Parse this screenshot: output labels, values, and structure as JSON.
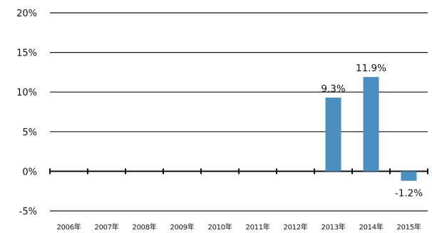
{
  "chart_data": {
    "type": "bar",
    "categories": [
      "2006年",
      "2007年",
      "2008年",
      "2009年",
      "2010年",
      "2011年",
      "2012年",
      "2013年",
      "2014年",
      "2015年"
    ],
    "values": [
      null,
      null,
      null,
      null,
      null,
      null,
      null,
      9.3,
      11.9,
      -1.2
    ],
    "data_labels": [
      "",
      "",
      "",
      "",
      "",
      "",
      "",
      "9.3%",
      "11.9%",
      "-1.2%"
    ],
    "y_ticks": [
      "20%",
      "15%",
      "10%",
      "5%",
      "0%",
      "-5%"
    ],
    "y_tick_values": [
      20,
      15,
      10,
      5,
      0,
      -5
    ],
    "ylim": [
      -5,
      20
    ],
    "bar_color": "#4a8fbf",
    "grid": true,
    "title": "",
    "xlabel": "",
    "ylabel": ""
  }
}
